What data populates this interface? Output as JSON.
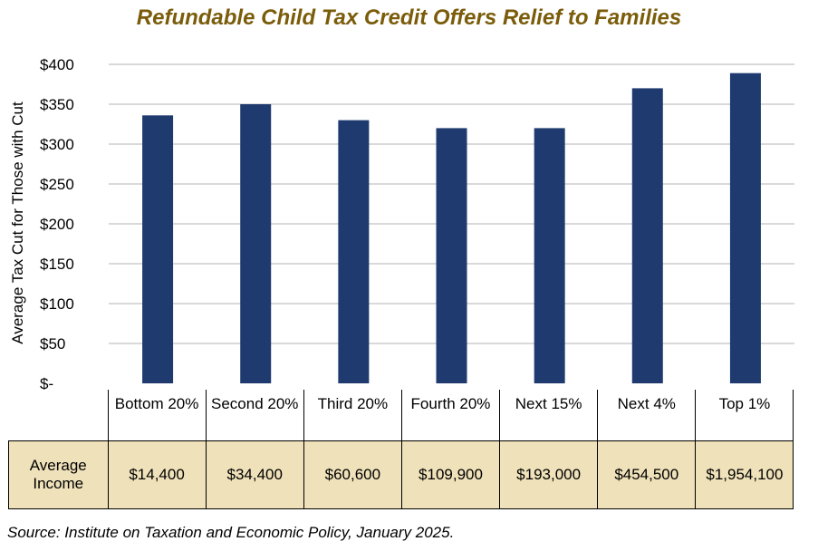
{
  "chart_data": {
    "type": "bar",
    "title": "Refundable Child Tax Credit Offers Relief to Families",
    "ylabel": "Average Tax Cut for Those with Cut",
    "xlabel": "",
    "categories": [
      "Bottom 20%",
      "Second 20%",
      "Third 20%",
      "Fourth 20%",
      "Next 15%",
      "Next 4%",
      "Top 1%"
    ],
    "values": [
      336,
      350,
      330,
      320,
      320,
      370,
      389
    ],
    "ylim": [
      0,
      400
    ],
    "yticks": [
      0,
      50,
      100,
      150,
      200,
      250,
      300,
      350,
      400
    ],
    "ytick_labels": [
      "$-",
      "$50",
      "$100",
      "$150",
      "$200",
      "$250",
      "$300",
      "$350",
      "$400"
    ],
    "grid": true,
    "bar_color": "#1f3a6e",
    "table": {
      "row_label": "Average Income",
      "values": [
        "$14,400",
        "$34,400",
        "$60,600",
        "$109,900",
        "$193,000",
        "$454,500",
        "$1,954,100"
      ],
      "fill": "#efe1b9"
    }
  },
  "source": "Source: Institute on Taxation and Economic Policy, January 2025."
}
